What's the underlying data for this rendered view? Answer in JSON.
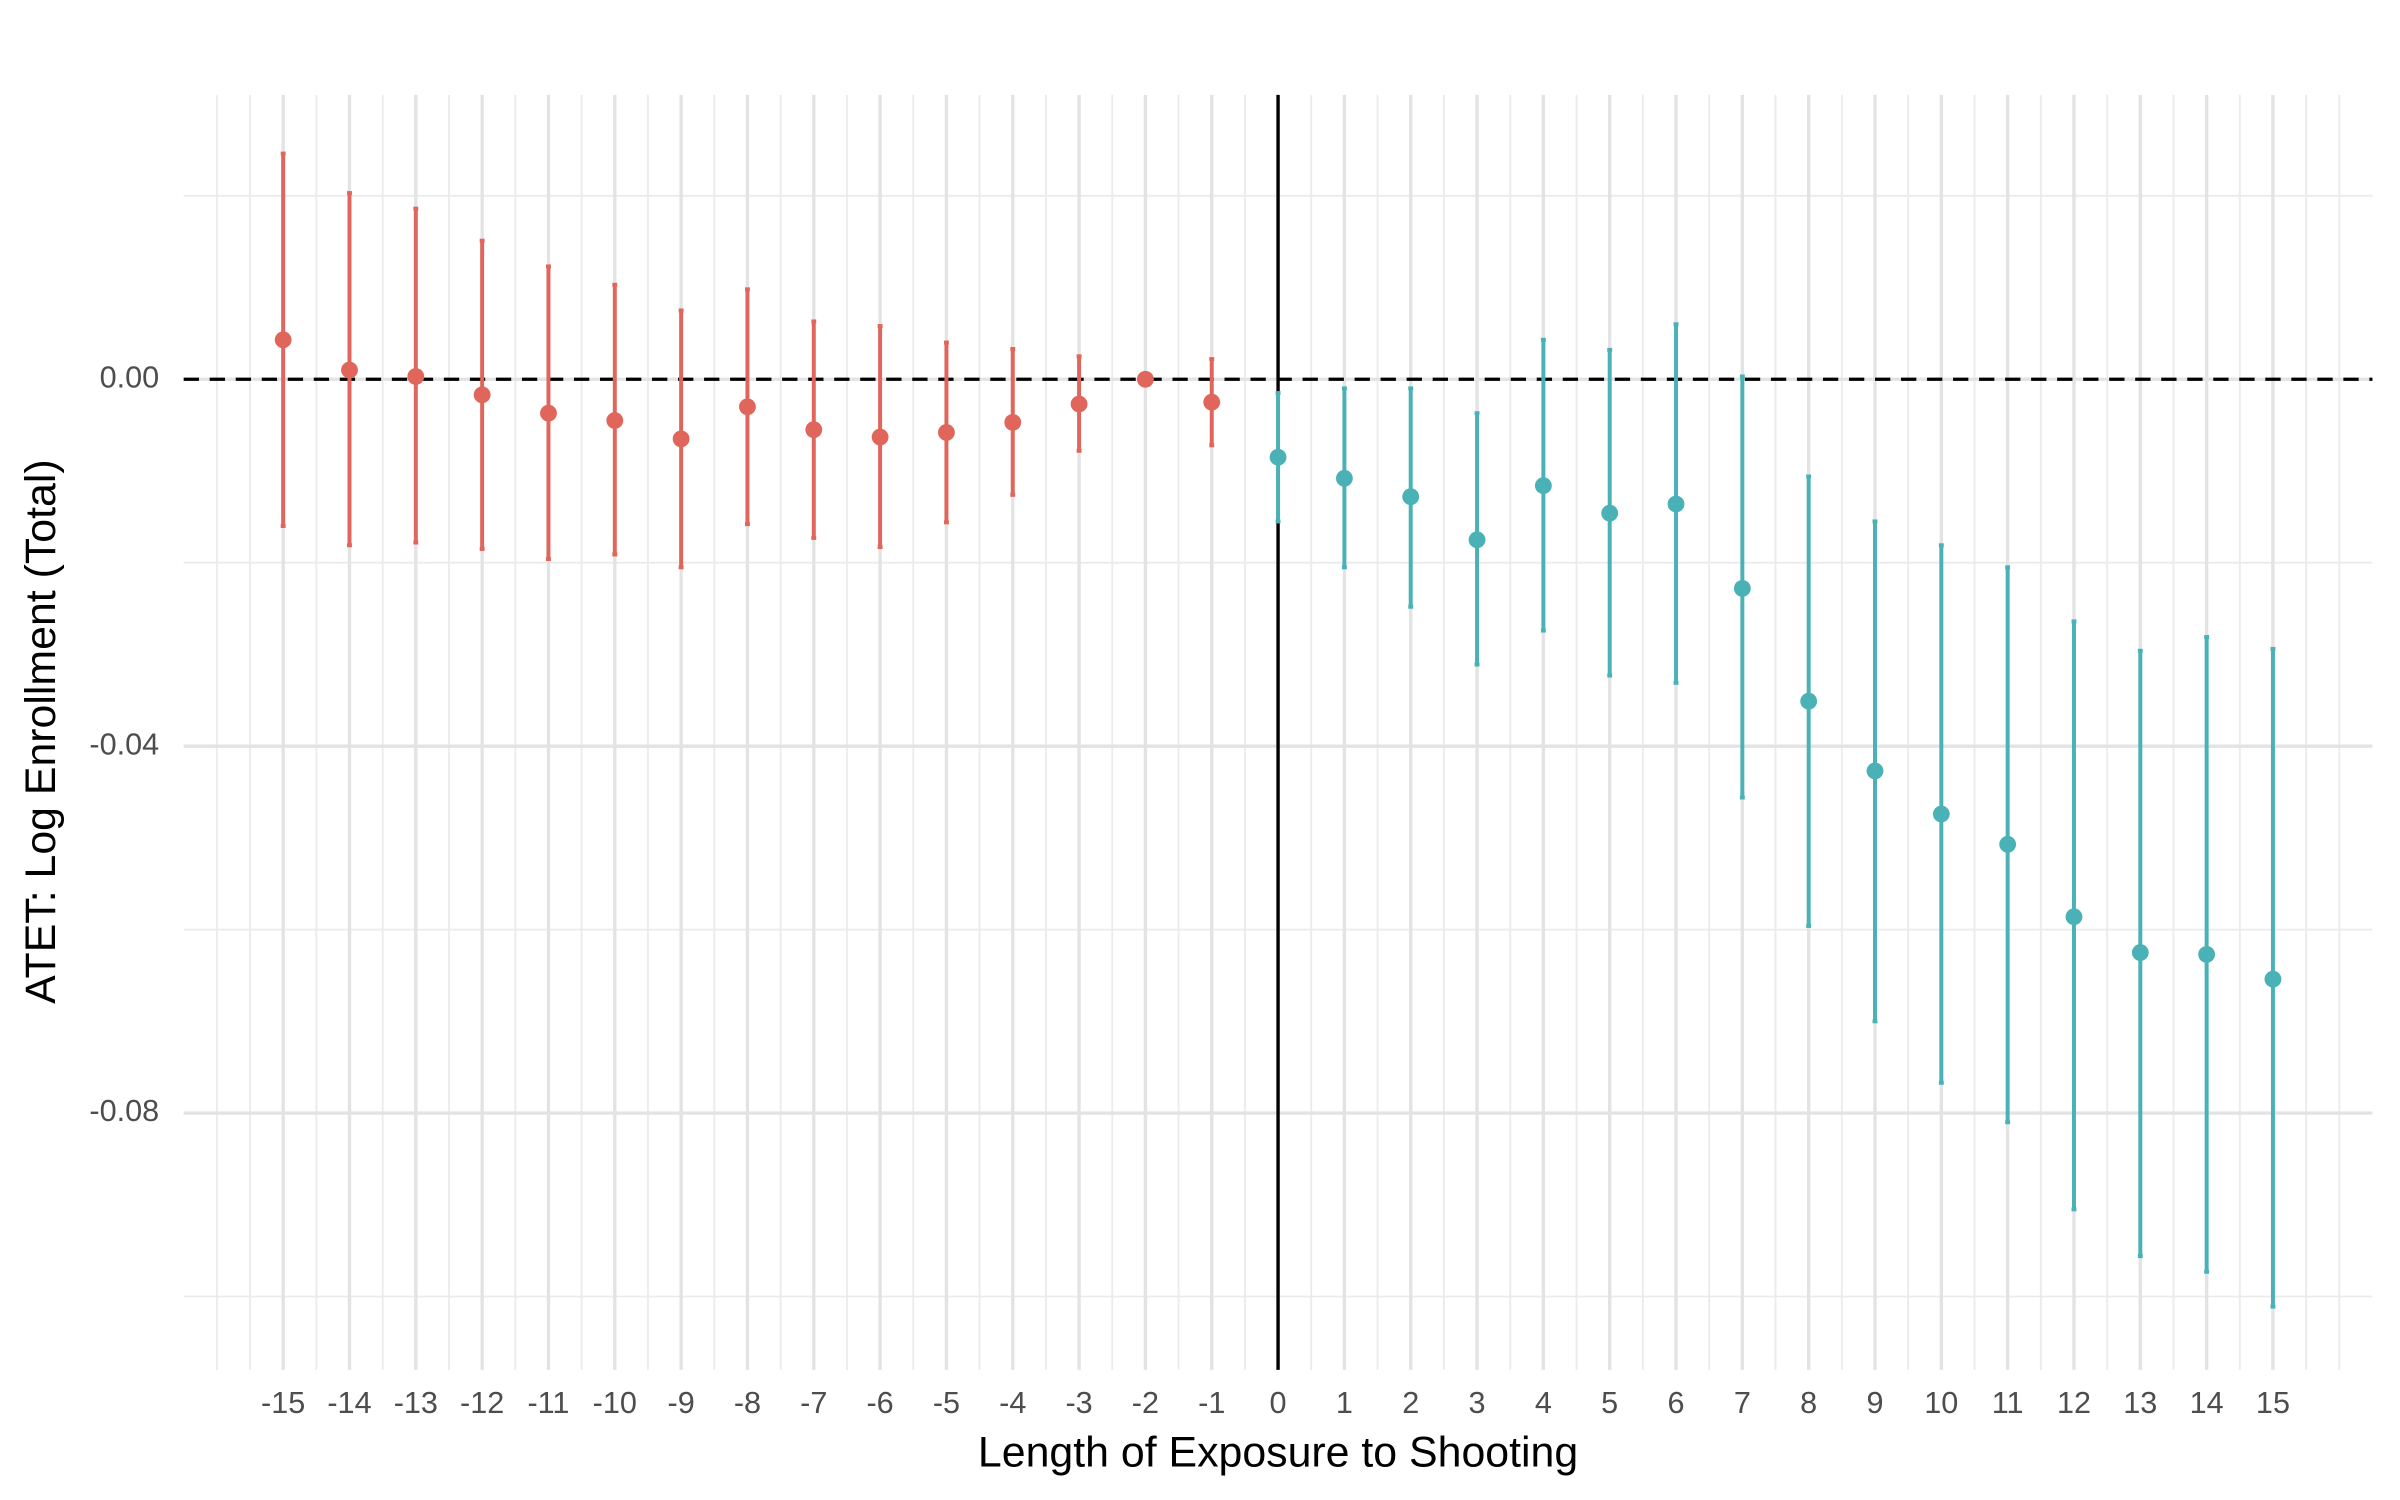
{
  "chart_data": {
    "type": "errorbar",
    "x_label": "Length of Exposure to Shooting",
    "y_label": "ATET: Log Enrollment (Total)",
    "xlim": [
      -16.5,
      16.5
    ],
    "ylim": [
      -0.108,
      0.031
    ],
    "xticks": [
      -15,
      -14,
      -13,
      -12,
      -11,
      -10,
      -9,
      -8,
      -7,
      -6,
      -5,
      -4,
      -3,
      -2,
      -1,
      0,
      1,
      2,
      3,
      4,
      5,
      6,
      7,
      8,
      9,
      10,
      11,
      12,
      13,
      14,
      15
    ],
    "yticks": [
      {
        "value": 0,
        "label": "0.00"
      },
      {
        "value": -0.04,
        "label": "-0.04"
      },
      {
        "value": -0.08,
        "label": "-0.08"
      }
    ],
    "y_minor_ticks": [
      0.02,
      -0.02,
      -0.06,
      -0.1
    ],
    "grid": true,
    "hline": 0,
    "vline": 0,
    "series": [
      {
        "color": "#E0665B",
        "x": [
          -15,
          -14,
          -13,
          -12,
          -11,
          -10,
          -9,
          -8,
          -7,
          -6,
          -5,
          -4,
          -3,
          -2,
          -1
        ],
        "values": [
          0.0043,
          0.001,
          0.0003,
          -0.0017,
          -0.0037,
          -0.0045,
          -0.0065,
          -0.003,
          -0.0055,
          -0.0063,
          -0.0058,
          -0.0047,
          -0.0027,
          0,
          -0.0025
        ],
        "lower": [
          -0.016,
          -0.0181,
          -0.0178,
          -0.0185,
          -0.0196,
          -0.0191,
          -0.0205,
          -0.0158,
          -0.0173,
          -0.0183,
          -0.0156,
          -0.0126,
          -0.0078,
          0,
          -0.0072
        ],
        "upper": [
          0.0246,
          0.0203,
          0.0186,
          0.0151,
          0.0123,
          0.0103,
          0.0075,
          0.0098,
          0.0063,
          0.0058,
          0.004,
          0.0033,
          0.0025,
          0,
          0.0022
        ]
      },
      {
        "color": "#4AB2B6",
        "x": [
          0,
          1,
          2,
          3,
          4,
          5,
          6,
          7,
          8,
          9,
          10,
          11,
          12,
          13,
          14,
          15
        ],
        "values": [
          -0.0085,
          -0.0108,
          -0.0128,
          -0.0175,
          -0.0116,
          -0.0146,
          -0.0136,
          -0.0228,
          -0.0351,
          -0.0427,
          -0.0474,
          -0.0507,
          -0.0586,
          -0.0625,
          -0.0627,
          -0.0654
        ],
        "lower": [
          -0.0155,
          -0.0205,
          -0.0248,
          -0.0311,
          -0.0274,
          -0.0323,
          -0.0331,
          -0.0456,
          -0.0596,
          -0.07,
          -0.0767,
          -0.081,
          -0.0905,
          -0.0956,
          -0.0973,
          -0.1011
        ],
        "upper": [
          -0.0015,
          -0.001,
          -0.001,
          -0.0037,
          0.0043,
          0.0032,
          0.006,
          0.0003,
          -0.0106,
          -0.0155,
          -0.0181,
          -0.0205,
          -0.0264,
          -0.0296,
          -0.0281,
          -0.0294
        ]
      }
    ]
  }
}
